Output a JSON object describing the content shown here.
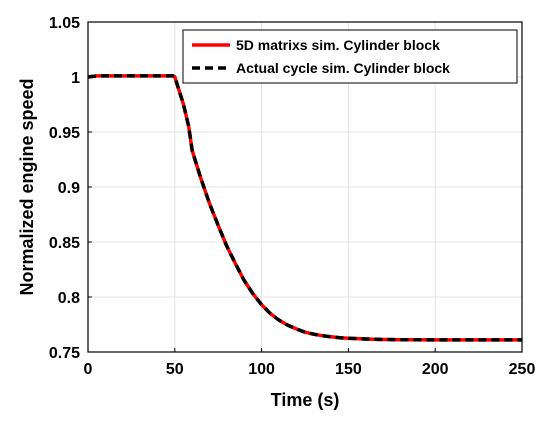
{
  "chart_data": {
    "type": "line",
    "xlabel": "Time (s)",
    "ylabel": "Normalized engine speed",
    "xlim": [
      0,
      250
    ],
    "ylim": [
      0.75,
      1.05
    ],
    "xticks": [
      0,
      50,
      100,
      150,
      200,
      250
    ],
    "yticks": [
      0.75,
      0.8,
      0.85,
      0.9,
      0.95,
      1,
      1.05
    ],
    "xtick_labels": [
      "0",
      "50",
      "100",
      "150",
      "200",
      "250"
    ],
    "ytick_labels": [
      "0.75",
      "0.8",
      "0.85",
      "0.9",
      "0.95",
      "1",
      "1.05"
    ],
    "grid": true,
    "legend_position": "top-right",
    "series": [
      {
        "name": "5D matrixs sim. Cylinder block",
        "color": "#ff0000",
        "style": "solid",
        "x": [
          0,
          5,
          20,
          40,
          49,
          50,
          52,
          55,
          58,
          60,
          65,
          70,
          75,
          80,
          85,
          90,
          95,
          100,
          105,
          110,
          115,
          120,
          125,
          130,
          135,
          140,
          145,
          150,
          160,
          170,
          180,
          190,
          200,
          210,
          220,
          230,
          240,
          250
        ],
        "y": [
          1.0,
          1.001,
          1.001,
          1.001,
          1.001,
          1.0,
          0.99,
          0.975,
          0.955,
          0.933,
          0.908,
          0.885,
          0.865,
          0.846,
          0.83,
          0.815,
          0.803,
          0.793,
          0.785,
          0.779,
          0.7745,
          0.771,
          0.768,
          0.7662,
          0.7648,
          0.7638,
          0.763,
          0.7625,
          0.7618,
          0.7614,
          0.7612,
          0.7611,
          0.761,
          0.761,
          0.761,
          0.761,
          0.761,
          0.761
        ]
      },
      {
        "name": "Actual cycle sim. Cylinder block",
        "color": "#000000",
        "style": "dashed",
        "x": [
          0,
          5,
          20,
          40,
          49,
          50,
          52,
          55,
          58,
          60,
          65,
          70,
          75,
          80,
          85,
          90,
          95,
          100,
          105,
          110,
          115,
          120,
          125,
          130,
          135,
          140,
          145,
          150,
          160,
          170,
          180,
          190,
          200,
          210,
          220,
          230,
          240,
          250
        ],
        "y": [
          1.0,
          1.001,
          1.001,
          1.001,
          1.001,
          1.0,
          0.99,
          0.975,
          0.955,
          0.933,
          0.908,
          0.885,
          0.865,
          0.846,
          0.83,
          0.815,
          0.803,
          0.793,
          0.785,
          0.779,
          0.7745,
          0.771,
          0.768,
          0.7662,
          0.7648,
          0.7638,
          0.763,
          0.7625,
          0.7618,
          0.7614,
          0.7612,
          0.7611,
          0.761,
          0.761,
          0.761,
          0.761,
          0.761,
          0.761
        ]
      }
    ]
  }
}
